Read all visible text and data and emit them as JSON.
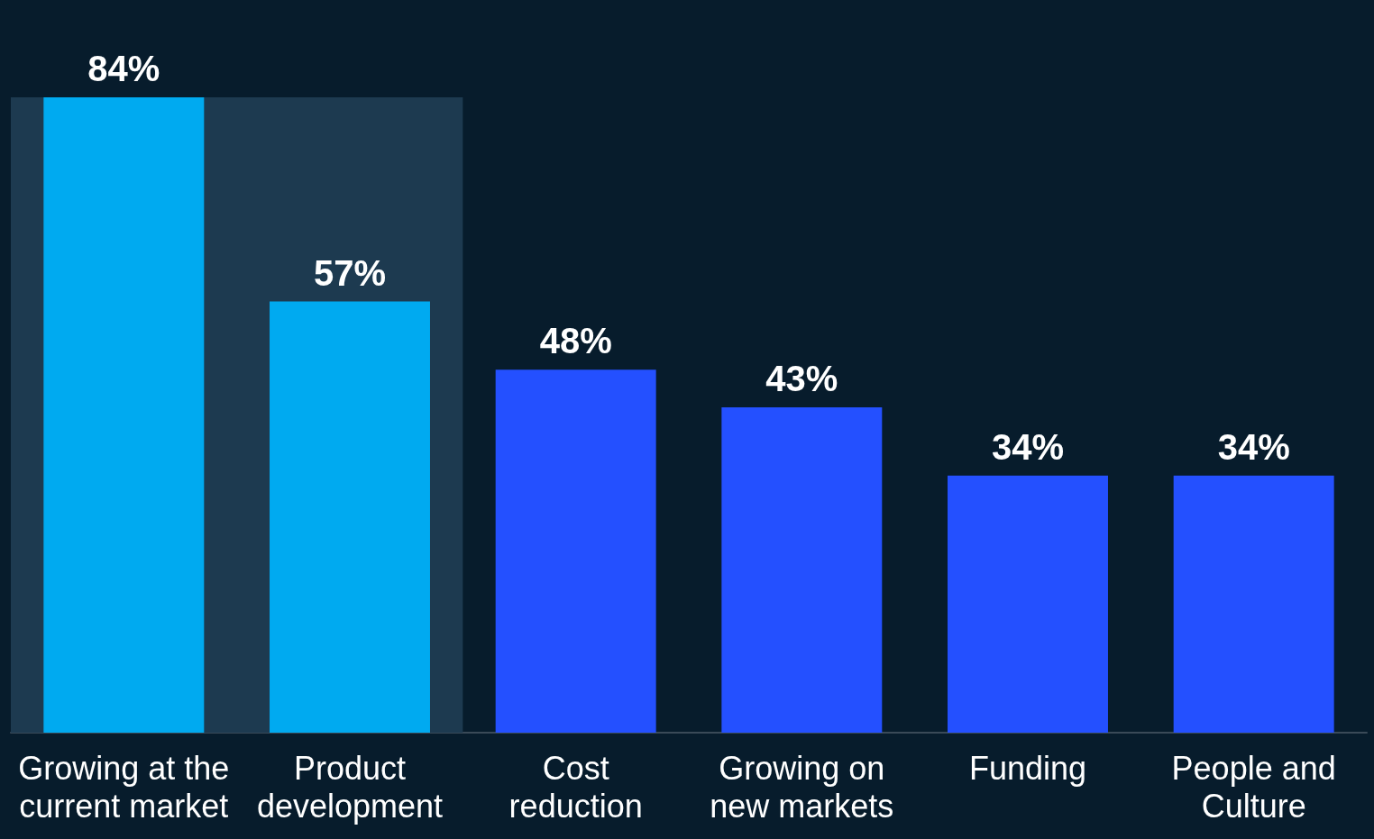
{
  "chart_data": {
    "type": "bar",
    "categories": [
      "Growing at the current market",
      "Product development",
      "Cost reduction",
      "Growing on new markets",
      "Funding",
      "People and Culture"
    ],
    "values": [
      84,
      57,
      48,
      43,
      34,
      34
    ],
    "value_labels": [
      "84%",
      "57%",
      "48%",
      "43%",
      "34%",
      "34%"
    ],
    "colors": [
      "#00aaf0",
      "#00aaf0",
      "#2450ff",
      "#2450ff",
      "#2450ff",
      "#2450ff"
    ],
    "bands": [
      {
        "axis": "x",
        "from": "Growing at the current market",
        "to": "Product development",
        "color": "#1d3a50"
      }
    ]
  }
}
